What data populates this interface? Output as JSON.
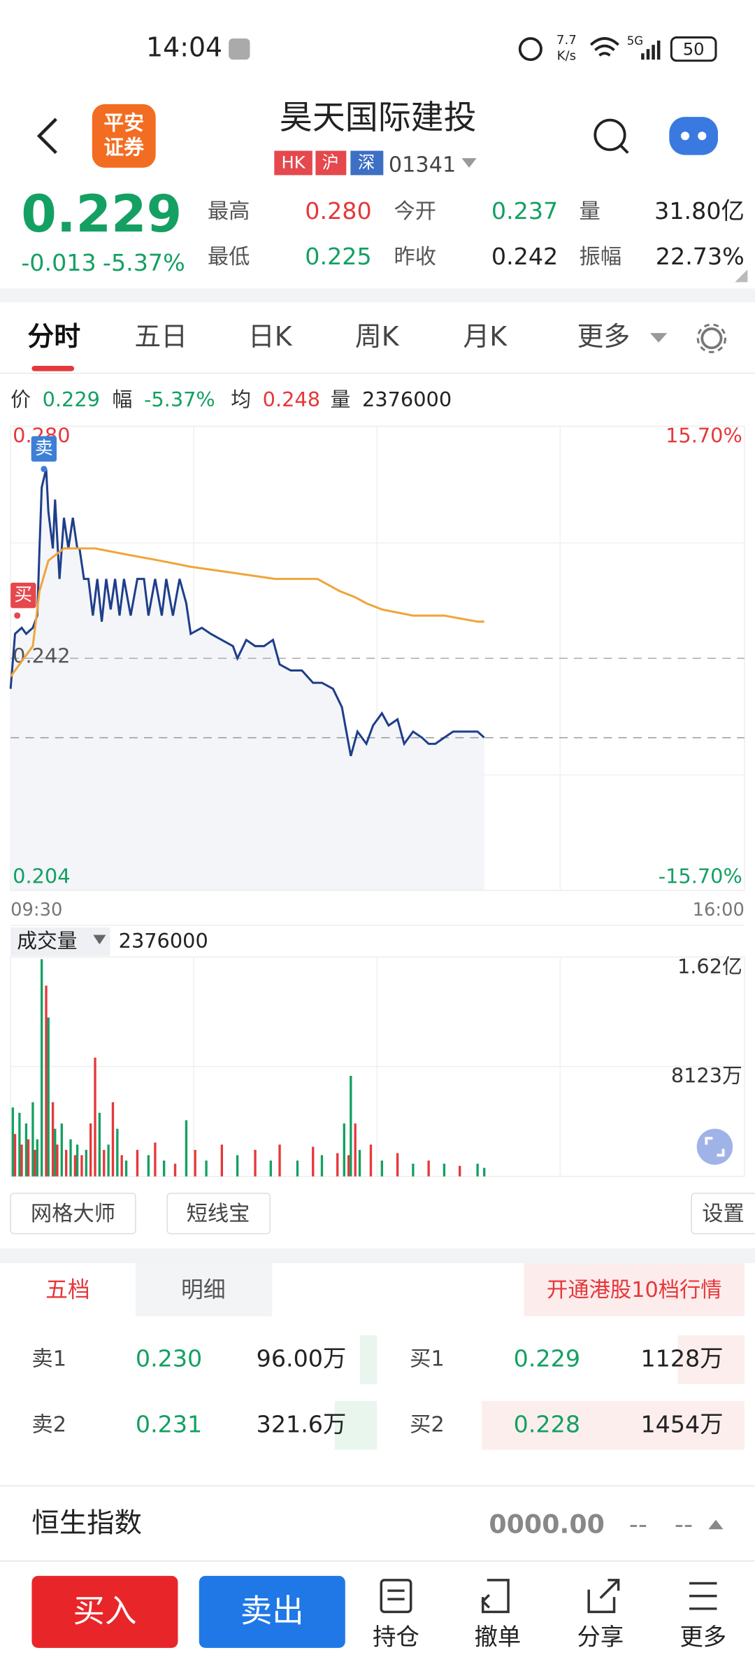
{
  "status": {
    "time": "14:04",
    "speed": "7.7",
    "speed_unit": "K/s",
    "network": "5G",
    "battery": "50"
  },
  "header": {
    "logo": [
      "平安",
      "证券"
    ],
    "title": "昊天国际建投",
    "tags": [
      "HK",
      "沪",
      "深"
    ],
    "code": "01341"
  },
  "quote": {
    "price": "0.229",
    "change": "-0.013",
    "change_pct": "-5.37%",
    "fields": [
      {
        "label": "最高",
        "value": "0.280"
      },
      {
        "label": "今开",
        "value": "0.237"
      },
      {
        "label": "量",
        "value": "31.80亿"
      },
      {
        "label": "最低",
        "value": "0.225"
      },
      {
        "label": "昨收",
        "value": "0.242"
      },
      {
        "label": "振幅",
        "value": "22.73%"
      }
    ]
  },
  "tabs": [
    "分时",
    "五日",
    "日K",
    "周K",
    "月K",
    "更多"
  ],
  "info": [
    {
      "label": "价",
      "value": "0.229"
    },
    {
      "label": "幅",
      "value": "-5.37%"
    },
    {
      "label": "均",
      "value": "0.248"
    },
    {
      "label": "量",
      "value": "2376000"
    }
  ],
  "chart_data": [
    {
      "type": "line",
      "xlim": [
        0,
        330
      ],
      "xticks": [
        {
          "value": 0,
          "label": "09:30"
        },
        {
          "value": 330,
          "label": "16:00"
        }
      ],
      "ylim": [
        0.204,
        0.28
      ],
      "yticks": [
        {
          "value": 0.28,
          "label": "0.280"
        },
        0.242,
        0.204
      ],
      "y2lim": [
        -15.7,
        15.7
      ],
      "y2ticks": [
        {
          "value": 15.7,
          "label": "15.70%"
        },
        {
          "value": -15.7,
          "label": "-15.70%"
        }
      ],
      "series": [
        {
          "color": "#1f3e8a",
          "fill": "#f3f5f9",
          "x": [
            0,
            2,
            5,
            7,
            10,
            12,
            13,
            14,
            16,
            17,
            19,
            20,
            22,
            24,
            26,
            28,
            30,
            31,
            33,
            35,
            37,
            39,
            41,
            43,
            45,
            47,
            49,
            51,
            54,
            57,
            60,
            62,
            65,
            68,
            70,
            73,
            76,
            79,
            81,
            86,
            90,
            95,
            100,
            102,
            106,
            110,
            114,
            118,
            121,
            126,
            131,
            136,
            140,
            145,
            149,
            151,
            153,
            156,
            160,
            163,
            167,
            170,
            174,
            177,
            181,
            185,
            188,
            191,
            195,
            199,
            203,
            207,
            210,
            213
          ],
          "values": [
            0.237,
            0.246,
            0.247,
            0.246,
            0.247,
            0.249,
            0.26,
            0.27,
            0.273,
            0.266,
            0.26,
            0.268,
            0.255,
            0.265,
            0.26,
            0.265,
            0.26,
            0.26,
            0.255,
            0.255,
            0.249,
            0.255,
            0.248,
            0.255,
            0.25,
            0.255,
            0.249,
            0.255,
            0.249,
            0.255,
            0.255,
            0.249,
            0.255,
            0.249,
            0.255,
            0.249,
            0.255,
            0.251,
            0.246,
            0.247,
            0.246,
            0.245,
            0.244,
            0.242,
            0.245,
            0.244,
            0.244,
            0.245,
            0.241,
            0.24,
            0.24,
            0.238,
            0.238,
            0.237,
            0.234,
            0.23,
            0.226,
            0.23,
            0.228,
            0.231,
            0.233,
            0.231,
            0.232,
            0.228,
            0.23,
            0.229,
            0.228,
            0.228,
            0.229,
            0.23,
            0.23,
            0.23,
            0.23,
            0.229
          ]
        },
        {
          "color": "#f0a53c",
          "x": [
            0,
            10,
            13,
            17,
            24,
            38,
            52,
            67,
            81,
            100,
            119,
            138,
            148,
            155,
            160,
            167,
            181,
            195,
            210,
            213
          ],
          "values": [
            0.239,
            0.244,
            0.253,
            0.258,
            0.26,
            0.26,
            0.259,
            0.258,
            0.257,
            0.256,
            0.255,
            0.255,
            0.253,
            0.252,
            0.251,
            0.25,
            0.249,
            0.249,
            0.248,
            0.248
          ]
        }
      ],
      "markers": [
        {
          "label": "卖",
          "x": 15,
          "value": 0.273,
          "color": "#3d7fd6"
        },
        {
          "label": "买",
          "x": 3,
          "value": 0.249,
          "color": "#e5484d"
        }
      ]
    },
    {
      "type": "bar",
      "title": "成交量",
      "value_text": "2376000",
      "xlim": [
        0,
        330
      ],
      "ylim": [
        0,
        162000000
      ],
      "yticks": [
        {
          "value": 162000000,
          "label": "1.62亿"
        },
        {
          "value": 81230000,
          "label": "8123万"
        }
      ],
      "x": [
        1,
        2,
        4,
        5,
        7,
        8,
        10,
        11,
        12,
        14,
        16,
        17,
        19,
        20,
        21,
        23,
        25,
        27,
        29,
        30,
        32,
        34,
        36,
        38,
        40,
        42,
        44,
        46,
        48,
        50,
        52,
        57,
        62,
        65,
        69,
        74,
        79,
        83,
        88,
        95,
        102,
        110,
        117,
        121,
        129,
        136,
        140,
        147,
        150,
        152,
        153,
        155,
        157,
        162,
        167,
        174,
        181,
        188,
        195,
        202,
        210,
        213
      ],
      "values": [
        50900000,
        31300000,
        47000000,
        23500000,
        39100000,
        27400000,
        54800000,
        19600000,
        27400000,
        160400000,
        140900000,
        117400000,
        54800000,
        35200000,
        23500000,
        39100000,
        19600000,
        27400000,
        15700000,
        23500000,
        15700000,
        19600000,
        39100000,
        87700000,
        47000000,
        19600000,
        23500000,
        54800000,
        35200000,
        15700000,
        11700000,
        19600000,
        15700000,
        25000000,
        11700000,
        9400000,
        41500000,
        19600000,
        11700000,
        23500000,
        15700000,
        19600000,
        11700000,
        23500000,
        11700000,
        21900000,
        15700000,
        17200000,
        39100000,
        15700000,
        74300000,
        39100000,
        19600000,
        23500000,
        11700000,
        17200000,
        9400000,
        11700000,
        9400000,
        7800000,
        9400000,
        6300000
      ],
      "colors": [
        "#14a062",
        "#e5383b",
        "#14a062",
        "#e5383b",
        "#14a062",
        "#e5383b",
        "#14a062",
        "#e5383b",
        "#14a062",
        "#14a062",
        "#e5383b",
        "#14a062",
        "#e5383b",
        "#14a062",
        "#e5383b",
        "#14a062",
        "#e5383b",
        "#14a062",
        "#e5383b",
        "#14a062",
        "#e5383b",
        "#14a062",
        "#e5383b",
        "#e5383b",
        "#14a062",
        "#e5383b",
        "#14a062",
        "#e5383b",
        "#14a062",
        "#e5383b",
        "#14a062",
        "#e5383b",
        "#14a062",
        "#e5383b",
        "#14a062",
        "#e5383b",
        "#14a062",
        "#e5383b",
        "#14a062",
        "#e5383b",
        "#14a062",
        "#e5383b",
        "#14a062",
        "#e5383b",
        "#14a062",
        "#e5383b",
        "#14a062",
        "#e5383b",
        "#14a062",
        "#e5383b",
        "#14a062",
        "#e5383b",
        "#14a062",
        "#e5383b",
        "#14a062",
        "#e5383b",
        "#14a062",
        "#e5383b",
        "#14a062",
        "#e5383b",
        "#14a062",
        "#14a062"
      ]
    }
  ],
  "tools": [
    "网格大师",
    "短线宝",
    "设置"
  ],
  "book": {
    "tabs": [
      "五档",
      "明细"
    ],
    "promo": "开通港股10档行情",
    "asks": [
      [
        "卖1",
        "0.230",
        "96.00万"
      ],
      [
        "卖2",
        "0.231",
        "321.6万"
      ]
    ],
    "bids": [
      [
        "买1",
        "0.229",
        "1128万"
      ],
      [
        "买2",
        "0.228",
        "1454万"
      ]
    ]
  },
  "index": {
    "name": "恒生指数",
    "value": "0000.00",
    "change": "--",
    "pct": "--"
  },
  "actions": {
    "buy": "买入",
    "sell": "卖出",
    "nav": [
      "持仓",
      "撤单",
      "分享",
      "更多"
    ]
  }
}
